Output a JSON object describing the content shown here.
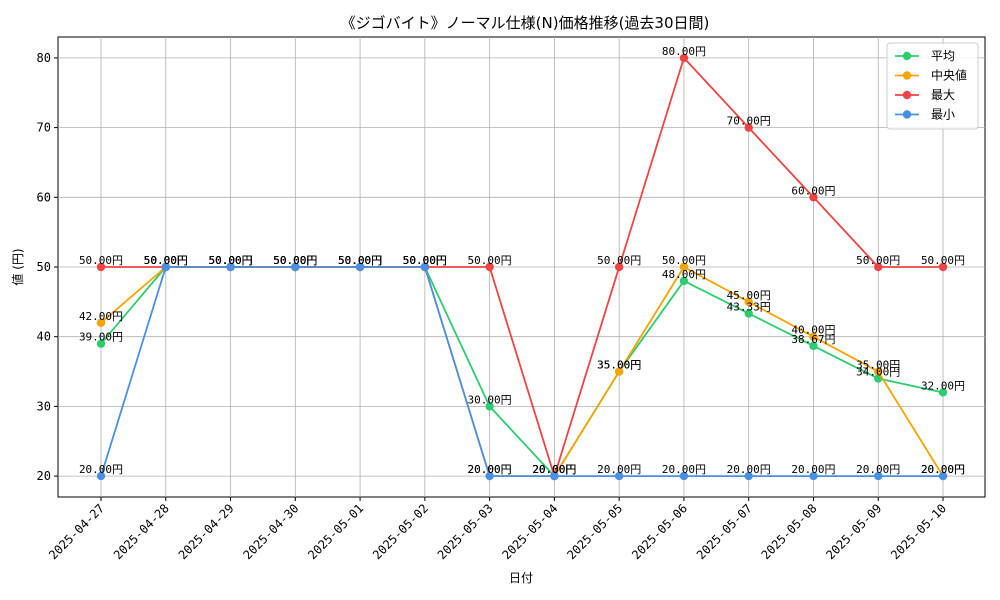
{
  "chart_data": {
    "type": "line",
    "title": "《ジゴバイト》ノーマル仕様(N)価格推移(過去30日間)",
    "xlabel": "日付",
    "ylabel": "値 (円)",
    "ylim": [
      17,
      83
    ],
    "yticks": [
      20,
      30,
      40,
      50,
      60,
      70,
      80
    ],
    "grid": true,
    "legend_position": "top-right",
    "value_suffix": "円",
    "categories": [
      "2025-04-27",
      "2025-04-28",
      "2025-04-29",
      "2025-04-30",
      "2025-05-01",
      "2025-05-02",
      "2025-05-03",
      "2025-05-04",
      "2025-05-05",
      "2025-05-06",
      "2025-05-07",
      "2025-05-08",
      "2025-05-09",
      "2025-05-10"
    ],
    "series": [
      {
        "name": "平均",
        "color": "#2ecc71",
        "values": [
          39.0,
          50.0,
          50.0,
          50.0,
          50.0,
          50.0,
          30.0,
          20.0,
          35.0,
          48.0,
          43.33,
          38.67,
          34.0,
          32.0
        ]
      },
      {
        "name": "中央値",
        "color": "#f5a400",
        "values": [
          42.0,
          50.0,
          50.0,
          50.0,
          50.0,
          50.0,
          20.0,
          20.0,
          35.0,
          50.0,
          45.0,
          40.0,
          35.0,
          20.0
        ]
      },
      {
        "name": "最大",
        "color": "#ef4444",
        "values": [
          50.0,
          50.0,
          50.0,
          50.0,
          50.0,
          50.0,
          50.0,
          20.0,
          50.0,
          80.0,
          70.0,
          60.0,
          50.0,
          50.0
        ]
      },
      {
        "name": "最小",
        "color": "#4a90e2",
        "values": [
          20.0,
          50.0,
          50.0,
          50.0,
          50.0,
          50.0,
          20.0,
          20.0,
          20.0,
          20.0,
          20.0,
          20.0,
          20.0,
          20.0
        ]
      }
    ]
  }
}
